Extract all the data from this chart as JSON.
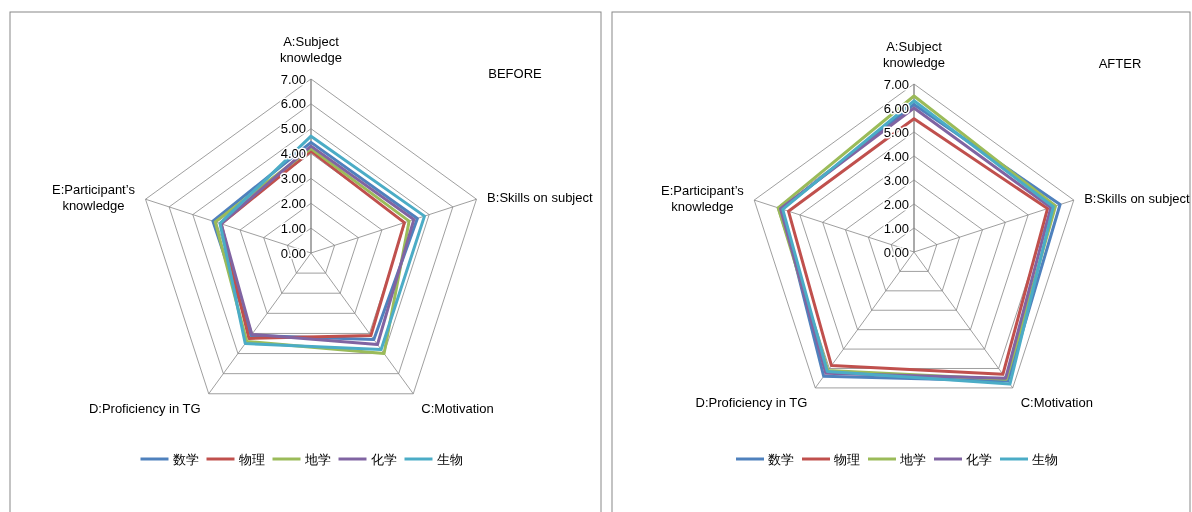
{
  "chart_data": [
    {
      "type": "radar",
      "title": "BEFORE",
      "categories": [
        "A:Subject knowledge",
        "B:Skills on subject",
        "C:Motivation",
        "D:Proficiency in TG",
        "E:Participant’s knowledge"
      ],
      "ylim": [
        0,
        7
      ],
      "yticks": [
        {
          "value": 0,
          "label": "0.00"
        },
        {
          "value": 1,
          "label": "1.00"
        },
        {
          "value": 2,
          "label": "2.00"
        },
        {
          "value": 3,
          "label": "3.00"
        },
        {
          "value": 4,
          "label": "4.00"
        },
        {
          "value": 5,
          "label": "5.00"
        },
        {
          "value": 6,
          "label": "6.00"
        },
        {
          "value": 7,
          "label": "7.00"
        }
      ],
      "grid": true,
      "legend": "bottom",
      "series": [
        {
          "name": "数学",
          "color": "#4f81bd",
          "values": [
            4.45,
            4.5,
            4.3,
            4.1,
            4.15
          ]
        },
        {
          "name": "物理",
          "color": "#c0504d",
          "values": [
            4.1,
            3.95,
            4.1,
            4.25,
            3.8
          ]
        },
        {
          "name": "地学",
          "color": "#9bbb59",
          "values": [
            4.2,
            4.15,
            5.0,
            4.4,
            4.05
          ]
        },
        {
          "name": "化学",
          "color": "#8064a2",
          "values": [
            4.3,
            4.35,
            4.55,
            4.05,
            3.8
          ]
        },
        {
          "name": "生物",
          "color": "#4bacc6",
          "values": [
            4.7,
            4.8,
            4.8,
            4.5,
            3.85
          ]
        }
      ]
    },
    {
      "type": "radar",
      "title": "AFTER",
      "categories": [
        "A:Subject knowledge",
        "B:Skills on subject",
        "C:Motivation",
        "D:Proficiency in TG",
        "E:Participant’s knowledge"
      ],
      "ylim": [
        0,
        7
      ],
      "yticks": [
        {
          "value": 0,
          "label": "0.00"
        },
        {
          "value": 1,
          "label": "1.00"
        },
        {
          "value": 2,
          "label": "2.00"
        },
        {
          "value": 3,
          "label": "3.00"
        },
        {
          "value": 4,
          "label": "4.00"
        },
        {
          "value": 5,
          "label": "5.00"
        },
        {
          "value": 6,
          "label": "6.00"
        },
        {
          "value": 7,
          "label": "7.00"
        }
      ],
      "grid": true,
      "legend": "bottom",
      "series": [
        {
          "name": "数学",
          "color": "#4f81bd",
          "values": [
            6.15,
            6.4,
            6.65,
            6.4,
            5.8
          ]
        },
        {
          "name": "物理",
          "color": "#c0504d",
          "values": [
            5.55,
            5.85,
            6.3,
            5.85,
            5.5
          ]
        },
        {
          "name": "地学",
          "color": "#9bbb59",
          "values": [
            6.5,
            6.2,
            6.55,
            6.1,
            5.95
          ]
        },
        {
          "name": "化学",
          "color": "#8064a2",
          "values": [
            6.0,
            6.0,
            6.5,
            6.25,
            5.85
          ]
        },
        {
          "name": "生物",
          "color": "#4bacc6",
          "values": [
            6.3,
            6.1,
            6.8,
            6.15,
            5.75
          ]
        }
      ]
    }
  ]
}
